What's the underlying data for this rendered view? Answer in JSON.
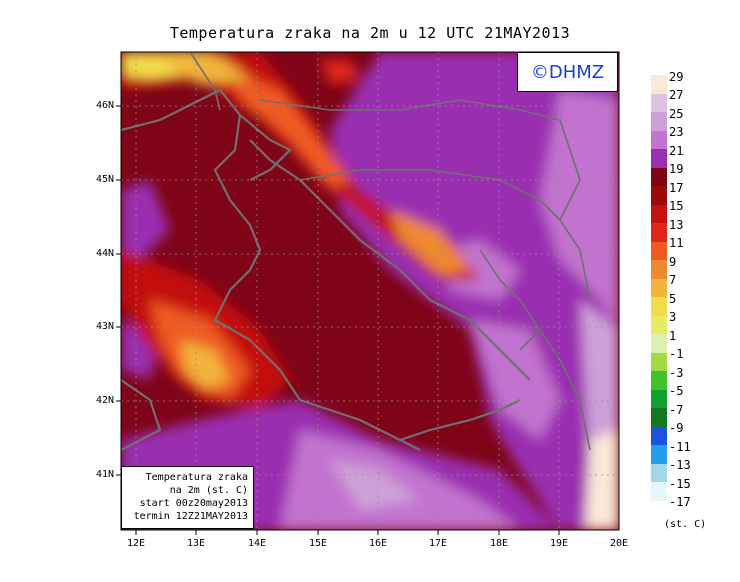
{
  "title": "Temperatura zraka na 2m u 12 UTC 21MAY2013",
  "logo": "©DHMZ",
  "info": [
    "Temperatura zraka",
    "na 2m (st. C)",
    "start 00z20may2013",
    "termin 12Z21MAY2013"
  ],
  "lat_labels": [
    "46N",
    "45N",
    "44N",
    "43N",
    "42N",
    "41N"
  ],
  "lon_labels": [
    "12E",
    "13E",
    "14E",
    "15E",
    "16E",
    "17E",
    "18E",
    "19E",
    "20E"
  ],
  "legend_levels": [
    "29",
    "27",
    "25",
    "23",
    "21",
    "19",
    "17",
    "15",
    "13",
    "11",
    "9",
    "7",
    "5",
    "3",
    "1",
    "-1",
    "-3",
    "-5",
    "-7",
    "-9",
    "-11",
    "-13",
    "-15",
    "-17"
  ],
  "legend_colors": [
    "#fbe9d6",
    "#dcc3de",
    "#cfa0d8",
    "#c273cf",
    "#9a2fb0",
    "#7f0418",
    "#9b0a0a",
    "#c41010",
    "#e0261a",
    "#f05a22",
    "#f0882e",
    "#f2b43a",
    "#f2dc4a",
    "#e8ec60",
    "#dcf0b0",
    "#a0dc40",
    "#44c02c",
    "#10a030",
    "#147820",
    "#2050e0",
    "#20a0e8",
    "#a0d8e8",
    "#e4f8fa"
  ],
  "legend_unit": "(st. C)"
}
